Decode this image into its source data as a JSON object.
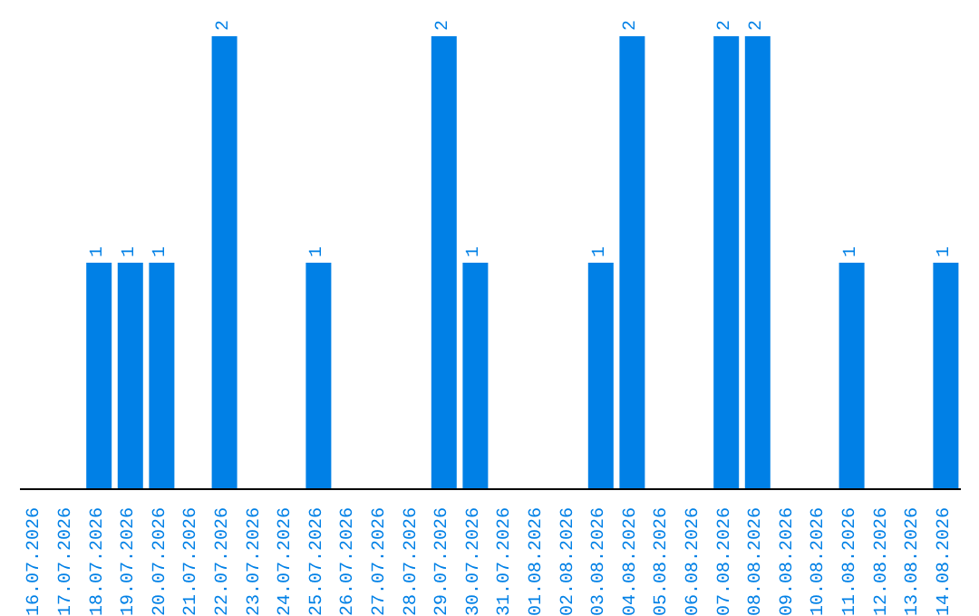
{
  "chart_data": {
    "type": "bar",
    "categories": [
      "16.07.2026",
      "17.07.2026",
      "18.07.2026",
      "19.07.2026",
      "20.07.2026",
      "21.07.2026",
      "22.07.2026",
      "23.07.2026",
      "24.07.2026",
      "25.07.2026",
      "26.07.2026",
      "27.07.2026",
      "28.07.2026",
      "29.07.2026",
      "30.07.2026",
      "31.07.2026",
      "01.08.2026",
      "02.08.2026",
      "03.08.2026",
      "04.08.2026",
      "05.08.2026",
      "06.08.2026",
      "07.08.2026",
      "08.08.2026",
      "09.08.2026",
      "10.08.2026",
      "11.08.2026",
      "12.08.2026",
      "13.08.2026",
      "14.08.2026"
    ],
    "values": [
      0,
      0,
      1,
      1,
      1,
      0,
      2,
      0,
      0,
      1,
      0,
      0,
      0,
      2,
      1,
      0,
      0,
      0,
      1,
      2,
      0,
      0,
      2,
      2,
      0,
      0,
      1,
      0,
      0,
      1
    ],
    "value_labels": [
      null,
      null,
      "1",
      "1",
      "1",
      null,
      "2",
      null,
      null,
      "1",
      null,
      null,
      null,
      "2",
      "1",
      null,
      null,
      null,
      "1",
      "2",
      null,
      null,
      "2",
      "2",
      null,
      null,
      "1",
      null,
      null,
      "1"
    ],
    "color": "#0080e6",
    "ylim": [
      0,
      2
    ],
    "tick_labels": "x",
    "grid": false,
    "legend": false
  }
}
